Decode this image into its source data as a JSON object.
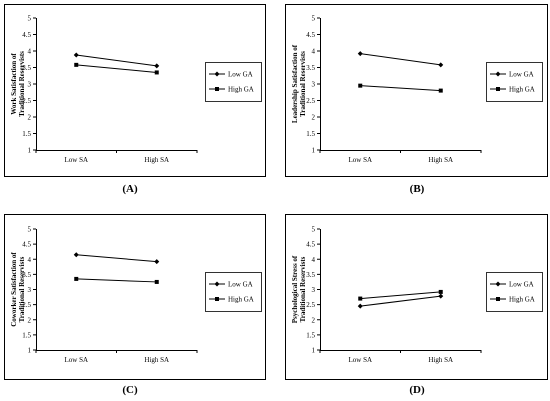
{
  "chart_data": [
    {
      "type": "line",
      "panel_label": "(A)",
      "ylabel": "Work Satisfaction of Traditional Reservists",
      "categories": [
        "Low SA",
        "High SA"
      ],
      "yticks": [
        "1",
        "1.5",
        "2",
        "2.5",
        "3",
        "3.5",
        "4",
        "4.5",
        "5"
      ],
      "ylim": [
        1,
        5
      ],
      "legend_position": "right",
      "series": [
        {
          "name": "Low GA",
          "marker": "diamond",
          "values": [
            3.88,
            3.55
          ]
        },
        {
          "name": "High GA",
          "marker": "square",
          "values": [
            3.58,
            3.35
          ]
        }
      ]
    },
    {
      "type": "line",
      "panel_label": "(B)",
      "ylabel": "Leadership Satisfaction of Traditional Reservists",
      "categories": [
        "Low SA",
        "High SA"
      ],
      "yticks": [
        "1",
        "1.5",
        "2",
        "2.5",
        "3",
        "3.5",
        "4",
        "4.5",
        "5"
      ],
      "ylim": [
        1,
        5
      ],
      "legend_position": "right",
      "series": [
        {
          "name": "Low GA",
          "marker": "diamond",
          "values": [
            3.92,
            3.58
          ]
        },
        {
          "name": "High GA",
          "marker": "square",
          "values": [
            2.95,
            2.8
          ]
        }
      ]
    },
    {
      "type": "line",
      "panel_label": "(C)",
      "ylabel": "Coworker Satisfaction of Traditional Reservists",
      "categories": [
        "Low SA",
        "High SA"
      ],
      "yticks": [
        "1",
        "1.5",
        "2",
        "2.5",
        "3",
        "3.5",
        "4",
        "4.5",
        "5"
      ],
      "ylim": [
        1,
        5
      ],
      "legend_position": "right",
      "series": [
        {
          "name": "Low GA",
          "marker": "diamond",
          "values": [
            4.15,
            3.92
          ]
        },
        {
          "name": "High GA",
          "marker": "square",
          "values": [
            3.35,
            3.25
          ]
        }
      ]
    },
    {
      "type": "line",
      "panel_label": "(D)",
      "ylabel": "Psychological Stress of Traditional Reservists",
      "categories": [
        "Low SA",
        "High SA"
      ],
      "yticks": [
        "1",
        "1.5",
        "2",
        "2.5",
        "3",
        "3.5",
        "4",
        "4.5",
        "5"
      ],
      "ylim": [
        1,
        5
      ],
      "legend_position": "right",
      "series": [
        {
          "name": "Low GA",
          "marker": "diamond",
          "values": [
            2.45,
            2.78
          ]
        },
        {
          "name": "High GA",
          "marker": "square",
          "values": [
            2.7,
            2.92
          ]
        }
      ]
    }
  ]
}
